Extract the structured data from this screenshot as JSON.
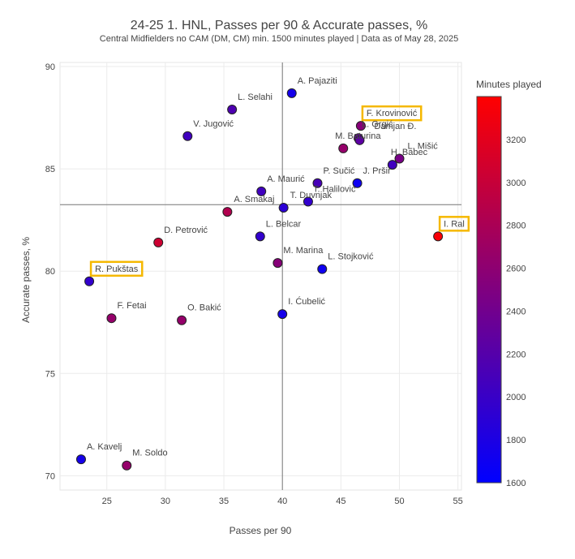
{
  "chart_data": {
    "type": "scatter",
    "title": "24-25 1. HNL, Passes per 90 & Accurate passes, %",
    "subtitle": "Central Midfielders no CAM (DM, CM) min. 1500 minutes played | Data as of May 28, 2025",
    "xlabel": "Passes per 90",
    "ylabel": "Accurate passes, %",
    "xlim": [
      21,
      55.3
    ],
    "ylim": [
      69.3,
      90.2
    ],
    "xticks": [
      "25",
      "30",
      "35",
      "40",
      "45",
      "50",
      "55"
    ],
    "yticks": [
      "70",
      "75",
      "80",
      "85",
      "90"
    ],
    "xtick_values": [
      25,
      30,
      35,
      40,
      45,
      50,
      55
    ],
    "ytick_values": [
      70,
      75,
      80,
      85,
      90
    ],
    "reference_lines": {
      "x": 40.0,
      "y": 83.25
    },
    "grid": true,
    "colorbar": {
      "title": "Minutes played",
      "min": 1600,
      "max": 3400,
      "ticks": [
        "1600",
        "1800",
        "2000",
        "2200",
        "2400",
        "2600",
        "2800",
        "3000",
        "3200"
      ],
      "tick_values": [
        1600,
        1800,
        2000,
        2200,
        2400,
        2600,
        2800,
        3000,
        3200
      ],
      "color_low": "#0000ff",
      "color_high": "#ff0000"
    },
    "highlight_color": "#f5b800",
    "points": [
      {
        "name": "A. Pajaziti",
        "x": 40.8,
        "y": 88.7,
        "minutes": 1750,
        "highlight": false
      },
      {
        "name": "L. Selahi",
        "x": 35.7,
        "y": 87.9,
        "minutes": 2150,
        "highlight": false
      },
      {
        "name": "V. Jugović",
        "x": 31.9,
        "y": 86.6,
        "minutes": 2050,
        "highlight": false
      },
      {
        "name": "F. Krovinović",
        "x": 46.7,
        "y": 87.1,
        "minutes": 2550,
        "highlight": true
      },
      {
        "name": "L. Grgić",
        "x": 46.5,
        "y": 86.5,
        "minutes": 2300,
        "highlight": false
      },
      {
        "name": "Damjan Đ.",
        "x": 46.6,
        "y": 86.4,
        "minutes": 2250,
        "highlight": false
      },
      {
        "name": "M. Baturina",
        "x": 45.2,
        "y": 86.0,
        "minutes": 2650,
        "highlight": false
      },
      {
        "name": "L. Mišić",
        "x": 50.0,
        "y": 85.5,
        "minutes": 2450,
        "highlight": false
      },
      {
        "name": "H. Babec",
        "x": 49.4,
        "y": 85.2,
        "minutes": 2050,
        "highlight": false
      },
      {
        "name": "J. Pršir",
        "x": 46.4,
        "y": 84.3,
        "minutes": 1700,
        "highlight": false
      },
      {
        "name": "P. Sučić",
        "x": 43.0,
        "y": 84.3,
        "minutes": 2100,
        "highlight": false
      },
      {
        "name": "A. Maurić",
        "x": 38.2,
        "y": 83.9,
        "minutes": 2050,
        "highlight": false
      },
      {
        "name": "T. Halilović",
        "x": 42.2,
        "y": 83.4,
        "minutes": 1950,
        "highlight": false
      },
      {
        "name": "T. Duvnjak",
        "x": 40.1,
        "y": 83.1,
        "minutes": 1900,
        "highlight": false
      },
      {
        "name": "A. Smakaj",
        "x": 35.3,
        "y": 82.9,
        "minutes": 2850,
        "highlight": false
      },
      {
        "name": "I. Ral",
        "x": 53.3,
        "y": 81.7,
        "minutes": 3350,
        "highlight": true
      },
      {
        "name": "L. Belcar",
        "x": 38.1,
        "y": 81.7,
        "minutes": 1950,
        "highlight": false
      },
      {
        "name": "D. Petrović",
        "x": 29.4,
        "y": 81.4,
        "minutes": 3050,
        "highlight": false
      },
      {
        "name": "M. Marina",
        "x": 39.6,
        "y": 80.4,
        "minutes": 2550,
        "highlight": false
      },
      {
        "name": "L. Stojković",
        "x": 43.4,
        "y": 80.1,
        "minutes": 1700,
        "highlight": false
      },
      {
        "name": "R. Pukštas",
        "x": 23.5,
        "y": 79.5,
        "minutes": 1950,
        "highlight": true
      },
      {
        "name": "F. Fetai",
        "x": 25.4,
        "y": 77.7,
        "minutes": 2650,
        "highlight": false
      },
      {
        "name": "O. Bakić",
        "x": 31.4,
        "y": 77.6,
        "minutes": 2650,
        "highlight": false
      },
      {
        "name": "I. Ćubelić",
        "x": 40.0,
        "y": 77.9,
        "minutes": 1750,
        "highlight": false
      },
      {
        "name": "A. Kavelj",
        "x": 22.8,
        "y": 70.8,
        "minutes": 1750,
        "highlight": false
      },
      {
        "name": "M. Soldo",
        "x": 26.7,
        "y": 70.5,
        "minutes": 2650,
        "highlight": false
      }
    ]
  }
}
